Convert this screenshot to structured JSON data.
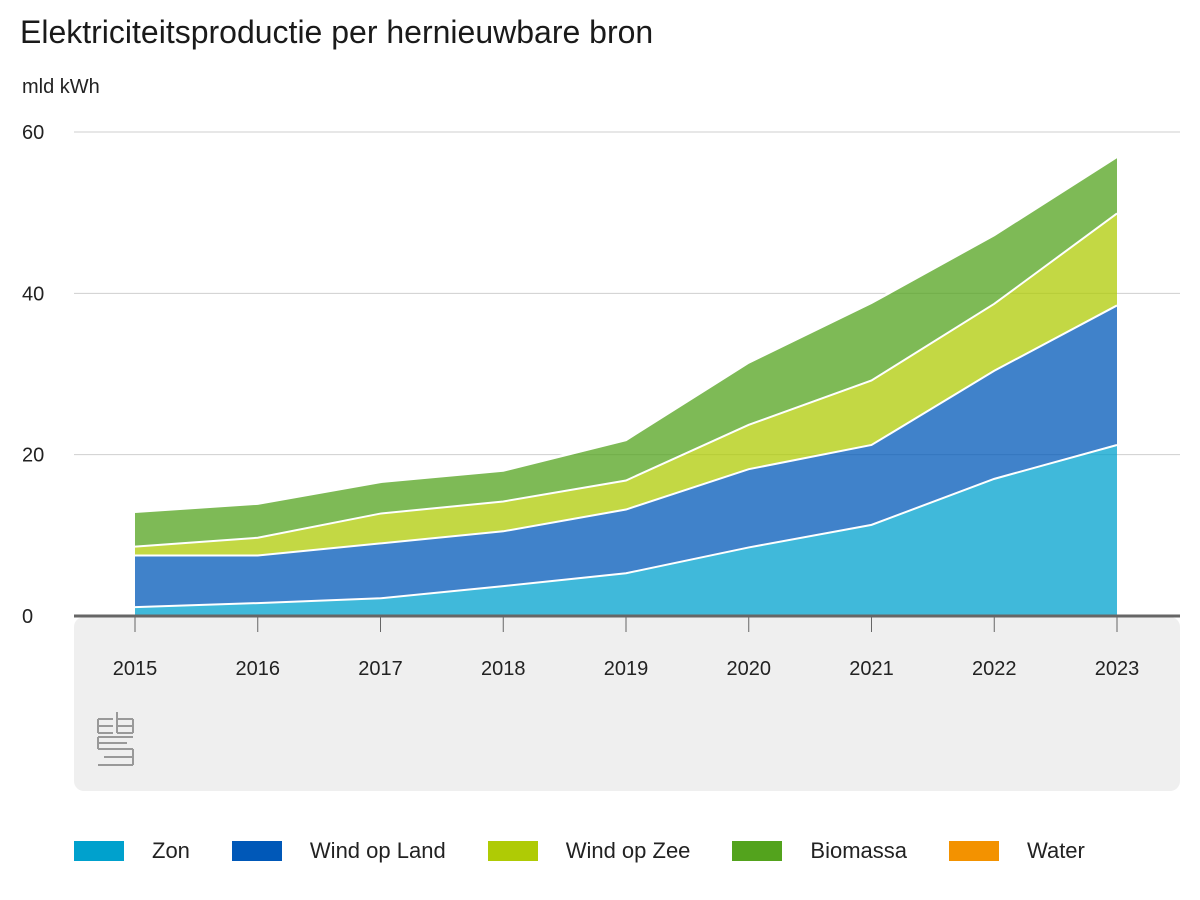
{
  "chart_data": {
    "type": "area",
    "title": "Elektriciteitsproductie per hernieuwbare bron",
    "ylabel": "mld kWh",
    "xlabel": "",
    "x": [
      "2015",
      "2016",
      "2017",
      "2018",
      "2019",
      "2020",
      "2021",
      "2022",
      "2023"
    ],
    "ylim": [
      0,
      60
    ],
    "yticks": [
      "0",
      "20",
      "40",
      "60"
    ],
    "stacked": true,
    "grid": true,
    "legend_position": "bottom",
    "series": [
      {
        "name": "Zon",
        "color": "#00a1cd",
        "values": [
          1.1,
          1.6,
          2.2,
          3.7,
          5.3,
          8.5,
          11.3,
          17.0,
          21.2
        ]
      },
      {
        "name": "Wind op Land",
        "color": "#0058b8",
        "values": [
          6.4,
          5.9,
          6.8,
          6.8,
          7.9,
          9.7,
          9.9,
          13.4,
          17.3
        ]
      },
      {
        "name": "Wind op Zee",
        "color": "#afcb05",
        "values": [
          1.1,
          2.2,
          3.7,
          3.7,
          3.6,
          5.5,
          8.0,
          8.3,
          11.4
        ]
      },
      {
        "name": "Biomassa",
        "color": "#53a31d",
        "values": [
          4.3,
          4.2,
          3.9,
          3.8,
          5.0,
          7.7,
          9.6,
          8.5,
          7.0
        ]
      },
      {
        "name": "Water",
        "color": "#f39200",
        "values": [
          0.1,
          0.1,
          0.1,
          0.1,
          0.1,
          0.1,
          0.1,
          0.1,
          0.1
        ]
      }
    ]
  },
  "logo": {
    "name": "cbs"
  }
}
